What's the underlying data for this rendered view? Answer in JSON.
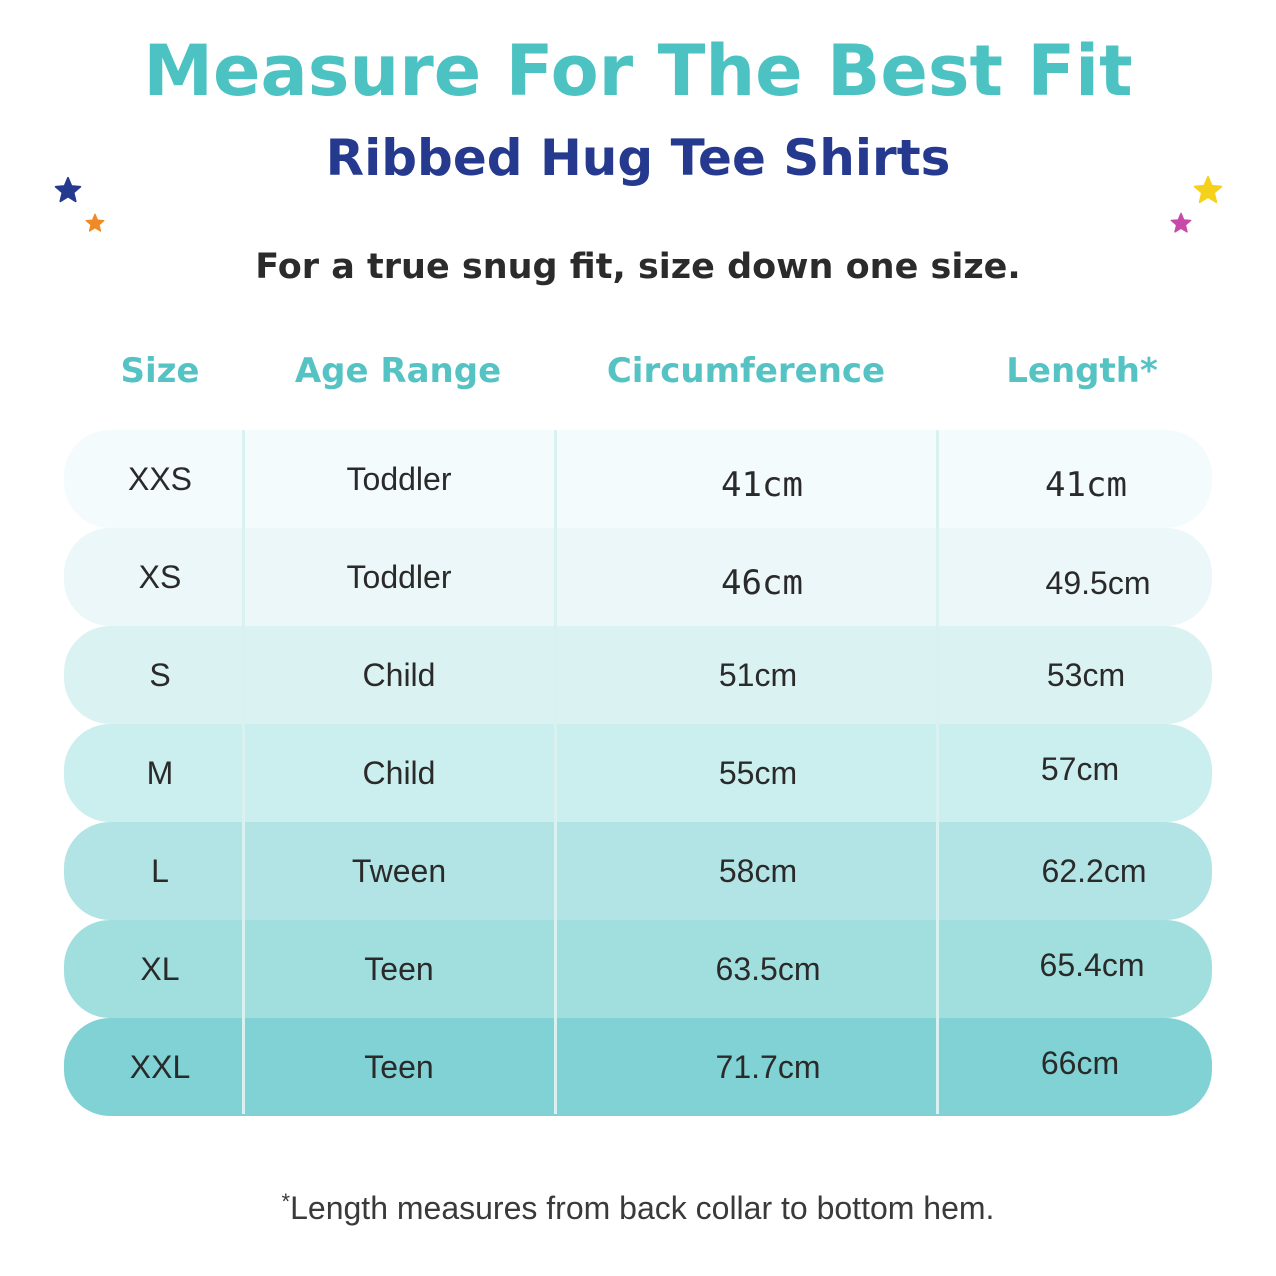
{
  "title": "Measure For The Best Fit",
  "subtitle": "Ribbed Hug Tee Shirts",
  "tagline": "For a true snug fit, size down one size.",
  "colors": {
    "title": "#4cc3c2",
    "subtitle": "#253a8e",
    "header": "#55c2c4",
    "star_navy": "#253a8e",
    "star_orange": "#f08a24",
    "star_yellow": "#f5d11c",
    "star_pink": "#c74aa8"
  },
  "decorations": [
    "star-icon-navy",
    "star-icon-orange",
    "star-icon-yellow",
    "star-icon-pink"
  ],
  "table": {
    "headers": {
      "size": "Size",
      "age_range": "Age Range",
      "circumference": "Circumference",
      "length": "Length*"
    },
    "rows": [
      {
        "size": "XXS",
        "age_range": "Toddler",
        "circumference": "41cm",
        "length": "41cm",
        "color": "#f3fbfc"
      },
      {
        "size": "XS",
        "age_range": "Toddler",
        "circumference": "46cm",
        "length": "49.5cm",
        "color": "#ebf7f8"
      },
      {
        "size": "S",
        "age_range": "Child",
        "circumference": "51cm",
        "length": "53cm",
        "color": "#dbf2f3"
      },
      {
        "size": "M",
        "age_range": "Child",
        "circumference": "55cm",
        "length": "57cm",
        "color": "#cbeeee"
      },
      {
        "size": "L",
        "age_range": "Tween",
        "circumference": "58cm",
        "length": "62.2cm",
        "color": "#b2e4e5"
      },
      {
        "size": "XL",
        "age_range": "Teen",
        "circumference": "63.5cm",
        "length": "65.4cm",
        "color": "#a1dfdf"
      },
      {
        "size": "XXL",
        "age_range": "Teen",
        "circumference": "71.7cm",
        "length": "66cm",
        "color": "#80d2d4"
      }
    ]
  },
  "footnote": {
    "asterisk": "*",
    "text": "Length measures from back collar to bottom hem."
  }
}
